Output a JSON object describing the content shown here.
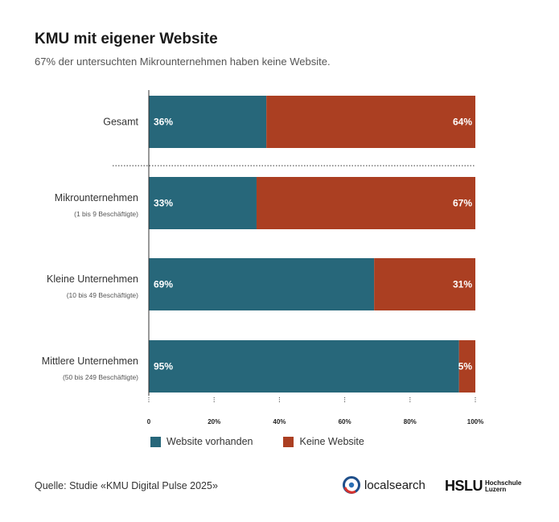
{
  "header": {
    "title": "KMU mit eigener Website",
    "subtitle": "67% der untersuchten Mikrounternehmen haben keine Website."
  },
  "colors": {
    "website": "#27677a",
    "no_website": "#ab3f22",
    "grid": "#333333"
  },
  "chart_data": {
    "type": "bar",
    "orientation": "horizontal",
    "stacked": true,
    "categories": [
      {
        "name": "Gesamt",
        "sub": ""
      },
      {
        "name": "Mikrounternehmen",
        "sub": "(1 bis 9 Beschäftigte)"
      },
      {
        "name": "Kleine Unternehmen",
        "sub": "(10 bis 49 Beschäftigte)"
      },
      {
        "name": "Mittlere Unternehmen",
        "sub": "(50 bis 249 Beschäftigte)"
      }
    ],
    "series": [
      {
        "name": "Website vorhanden",
        "values": [
          36,
          33,
          69,
          95
        ],
        "labels": [
          "36%",
          "33%",
          "69%",
          "95%"
        ]
      },
      {
        "name": "Keine Website",
        "values": [
          64,
          67,
          31,
          5
        ],
        "labels": [
          "64%",
          "67%",
          "31%",
          "5%"
        ]
      }
    ],
    "xlim": [
      0,
      100
    ],
    "xticks": [
      0,
      20,
      40,
      60,
      80,
      100
    ],
    "xtick_labels": [
      "0",
      "20%",
      "40%",
      "60%",
      "80%",
      "100%"
    ],
    "legend_position": "bottom-left",
    "grid": false,
    "separator_after_first": true
  },
  "legend": {
    "website": "Website vorhanden",
    "no_website": "Keine Website"
  },
  "footer": {
    "source": "Quelle: Studie «KMU Digital Pulse 2025»",
    "logo_localsearch": "localsearch",
    "logo_hslu": "HSLU",
    "logo_hslu_sub1": "Hochschule",
    "logo_hslu_sub2": "Luzern"
  }
}
